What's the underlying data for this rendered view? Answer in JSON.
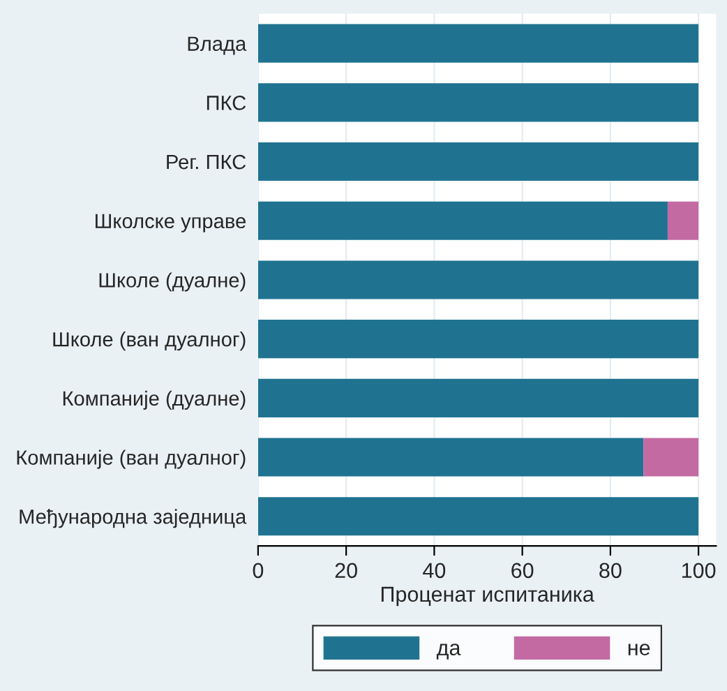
{
  "chart_data": {
    "type": "bar",
    "orientation": "horizontal",
    "stacked": true,
    "categories": [
      "Влада",
      "ПКС",
      "Рег. ПКС",
      "Школске управе",
      "Школе (дуалне)",
      "Школе (ван дуалног)",
      "Компаније (дуалне)",
      "Компаније (ван дуалног)",
      "Међународна заједница"
    ],
    "series": [
      {
        "name": "да",
        "color": "#1f7391",
        "values": [
          100,
          100,
          100,
          93,
          100,
          100,
          100,
          87.5,
          100
        ]
      },
      {
        "name": "не",
        "color": "#c46aa3",
        "values": [
          0,
          0,
          0,
          7,
          0,
          0,
          0,
          12.5,
          0
        ]
      }
    ],
    "xlim": [
      0,
      104
    ],
    "xticks": [
      0,
      20,
      40,
      60,
      80,
      100
    ],
    "xlabel": "Проценат испитаника",
    "grid": "x",
    "legend": "bottom"
  }
}
